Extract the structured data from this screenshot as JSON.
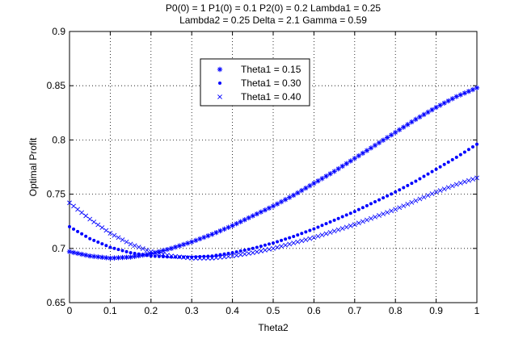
{
  "chart_data": {
    "type": "scatter",
    "title_lines": [
      "P0(0) = 1 P1(0) = 0.1 P2(0) = 0.2 Lambda1 = 0.25",
      "Lambda2 = 0.25 Delta = 2.1 Gamma = 0.59"
    ],
    "xlabel": "Theta2",
    "ylabel": "Optimal Profit",
    "xlim": [
      0,
      1
    ],
    "ylim": [
      0.65,
      0.9
    ],
    "xticks": [
      0,
      0.1,
      0.2,
      0.3,
      0.4,
      0.5,
      0.6,
      0.7,
      0.8,
      0.9,
      1
    ],
    "xtick_labels": [
      "0",
      "0.1",
      "0.2",
      "0.3",
      "0.4",
      "0.5",
      "0.6",
      "0.7",
      "0.8",
      "0.9",
      "1"
    ],
    "yticks": [
      0.65,
      0.7,
      0.75,
      0.8,
      0.85,
      0.9
    ],
    "ytick_labels": [
      "0.65",
      "0.7",
      "0.75",
      "0.8",
      "0.85",
      "0.9"
    ],
    "grid": true,
    "legend_position": "top-center",
    "marker_color": "#0000ff",
    "series": [
      {
        "name": "Theta1 = 0.15",
        "marker": "asterisk",
        "x": [
          0,
          0.05,
          0.1,
          0.15,
          0.2,
          0.25,
          0.3,
          0.35,
          0.4,
          0.45,
          0.5,
          0.55,
          0.6,
          0.65,
          0.7,
          0.75,
          0.8,
          0.85,
          0.9,
          0.95,
          1
        ],
        "y": [
          0.697,
          0.693,
          0.691,
          0.692,
          0.695,
          0.7,
          0.706,
          0.713,
          0.721,
          0.73,
          0.739,
          0.749,
          0.76,
          0.771,
          0.783,
          0.795,
          0.807,
          0.819,
          0.83,
          0.84,
          0.848
        ]
      },
      {
        "name": "Theta1 = 0.30",
        "marker": "dot",
        "x": [
          0,
          0.05,
          0.1,
          0.15,
          0.2,
          0.25,
          0.3,
          0.35,
          0.4,
          0.45,
          0.5,
          0.55,
          0.6,
          0.65,
          0.7,
          0.75,
          0.8,
          0.85,
          0.9,
          0.95,
          1
        ],
        "y": [
          0.72,
          0.709,
          0.701,
          0.696,
          0.693,
          0.692,
          0.692,
          0.693,
          0.696,
          0.7,
          0.705,
          0.711,
          0.718,
          0.726,
          0.734,
          0.743,
          0.752,
          0.762,
          0.773,
          0.784,
          0.796
        ]
      },
      {
        "name": "Theta1 = 0.40",
        "marker": "x",
        "x": [
          0,
          0.05,
          0.1,
          0.15,
          0.2,
          0.25,
          0.3,
          0.35,
          0.4,
          0.45,
          0.5,
          0.55,
          0.6,
          0.65,
          0.7,
          0.75,
          0.8,
          0.85,
          0.9,
          0.95,
          1
        ],
        "y": [
          0.742,
          0.727,
          0.714,
          0.704,
          0.697,
          0.693,
          0.691,
          0.691,
          0.693,
          0.696,
          0.7,
          0.705,
          0.71,
          0.716,
          0.722,
          0.729,
          0.736,
          0.744,
          0.752,
          0.759,
          0.765
        ]
      }
    ]
  }
}
